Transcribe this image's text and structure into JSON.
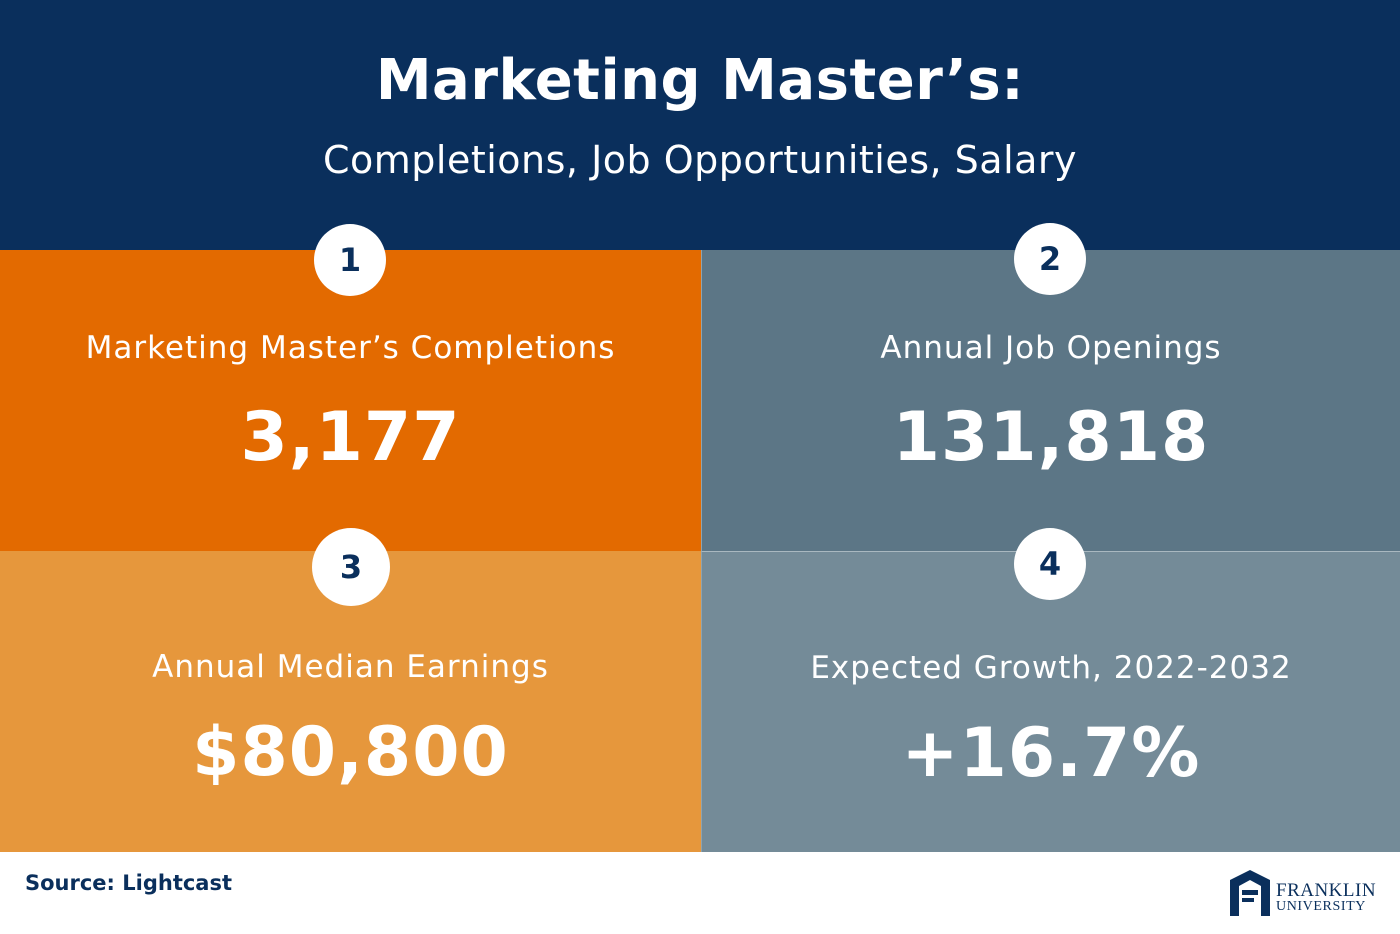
{
  "header": {
    "title": "Marketing Master’s:",
    "subtitle": "Completions, Job Opportunities, Salary"
  },
  "stats": [
    {
      "number": "1",
      "label": "Marketing Master’s Completions",
      "value": "3,177",
      "color": "#e36a00"
    },
    {
      "number": "2",
      "label": "Annual Job Openings",
      "value": "131,818",
      "color": "#5c7686"
    },
    {
      "number": "3",
      "label": "Annual Median Earnings",
      "value": "$80,800",
      "color": "#e6973c"
    },
    {
      "number": "4",
      "label": "Expected Growth, 2022-2032",
      "value": "+16.7%",
      "color": "#748b98"
    }
  ],
  "footer": {
    "source": "Source: Lightcast",
    "logo": {
      "name": "FRANKLIN",
      "subname": "UNIVERSITY",
      "icon": "franklin-arch-icon"
    }
  },
  "colors": {
    "navy": "#0a2f5c",
    "white": "#ffffff"
  }
}
